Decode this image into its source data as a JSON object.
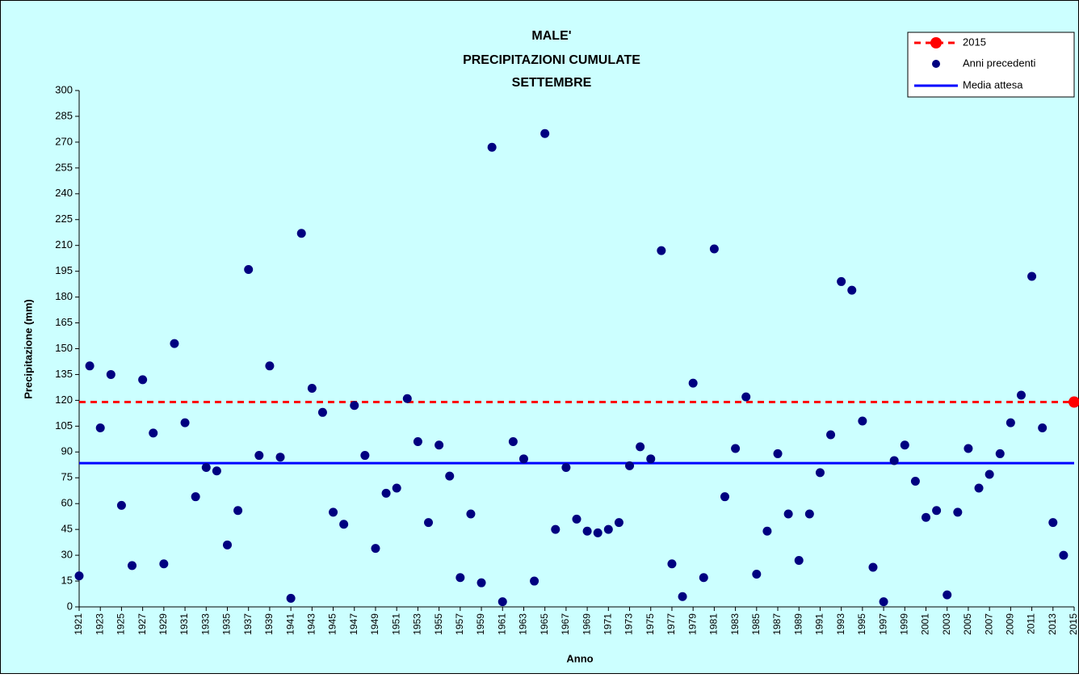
{
  "chart_data": {
    "type": "scatter",
    "title": [
      "MALE'",
      "PRECIPITAZIONI CUMULATE",
      "SETTEMBRE"
    ],
    "x_label": "Anno",
    "y_label": "Precipitazione (mm)",
    "xlim": [
      1921,
      2015
    ],
    "xticks": [
      1921,
      1923,
      1925,
      1927,
      1929,
      1931,
      1933,
      1935,
      1937,
      1939,
      1941,
      1943,
      1945,
      1947,
      1949,
      1951,
      1953,
      1955,
      1957,
      1959,
      1961,
      1963,
      1965,
      1967,
      1969,
      1971,
      1973,
      1975,
      1977,
      1979,
      1981,
      1983,
      1985,
      1987,
      1989,
      1991,
      1993,
      1995,
      1997,
      1999,
      2001,
      2003,
      2005,
      2007,
      2009,
      2011,
      2013,
      2015
    ],
    "ylim": [
      0,
      300
    ],
    "yticks": [
      0,
      15,
      30,
      45,
      60,
      75,
      90,
      105,
      120,
      135,
      150,
      165,
      180,
      195,
      210,
      225,
      240,
      255,
      270,
      285,
      300
    ],
    "legend": "top-right",
    "series": [
      {
        "name": "2015",
        "color": "#ff0000",
        "x": [
          2015
        ],
        "values": [
          119
        ]
      },
      {
        "name": "Anni precedenti",
        "color": "#000080",
        "x": [
          1921,
          1922,
          1923,
          1924,
          1925,
          1926,
          1927,
          1928,
          1929,
          1930,
          1931,
          1932,
          1933,
          1934,
          1935,
          1936,
          1937,
          1938,
          1939,
          1940,
          1941,
          1942,
          1943,
          1944,
          1945,
          1946,
          1947,
          1948,
          1949,
          1950,
          1951,
          1952,
          1953,
          1954,
          1955,
          1956,
          1957,
          1958,
          1959,
          1960,
          1961,
          1962,
          1963,
          1964,
          1965,
          1966,
          1967,
          1968,
          1969,
          1970,
          1971,
          1972,
          1973,
          1974,
          1975,
          1976,
          1977,
          1978,
          1979,
          1980,
          1981,
          1982,
          1983,
          1984,
          1985,
          1986,
          1987,
          1988,
          1989,
          1990,
          1991,
          1992,
          1993,
          1994,
          1995,
          1996,
          1997,
          1998,
          1999,
          2000,
          2001,
          2002,
          2003,
          2004,
          2005,
          2006,
          2007,
          2008,
          2009,
          2010,
          2011,
          2012,
          2013,
          2014
        ],
        "values": [
          18,
          140,
          104,
          135,
          59,
          24,
          132,
          101,
          25,
          153,
          107,
          64,
          81,
          79,
          36,
          56,
          196,
          88,
          140,
          87,
          5,
          217,
          127,
          113,
          55,
          48,
          117,
          88,
          34,
          66,
          69,
          121,
          96,
          49,
          94,
          76,
          17,
          54,
          14,
          267,
          3,
          96,
          86,
          15,
          275,
          45,
          81,
          51,
          44,
          43,
          45,
          49,
          82,
          93,
          86,
          207,
          25,
          6,
          130,
          17,
          208,
          64,
          92,
          122,
          19,
          44,
          89,
          54,
          27,
          54,
          78,
          100,
          189,
          184,
          108,
          23,
          3,
          85,
          94,
          73,
          52,
          56,
          7,
          55,
          92,
          69,
          77,
          89,
          107,
          123,
          192,
          104,
          49,
          30
        ]
      }
    ],
    "reference_lines": [
      {
        "name": "Media attesa",
        "color": "#0000ff",
        "value": 83.5
      }
    ]
  }
}
